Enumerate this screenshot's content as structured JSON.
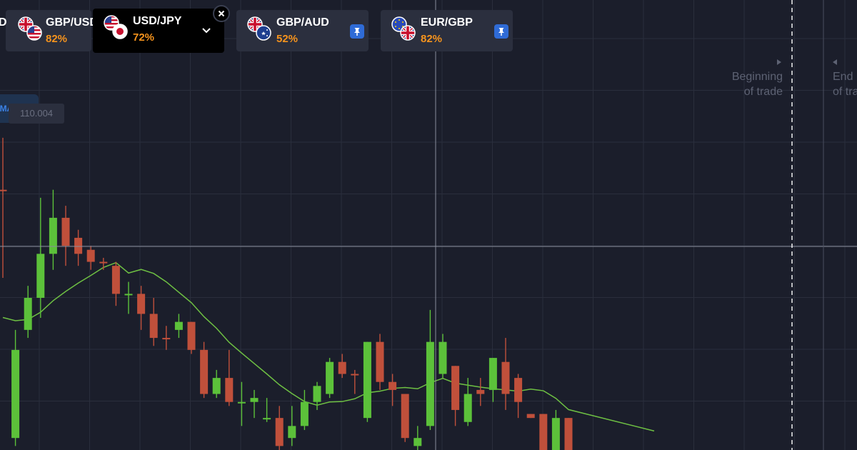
{
  "tabs": [
    {
      "pair": "GBP/USD",
      "percent": "82%",
      "flags": [
        "gb",
        "us"
      ],
      "active": false,
      "pinned": false
    },
    {
      "pair": "USD/JPY",
      "percent": "72%",
      "flags": [
        "us",
        "jp"
      ],
      "active": true,
      "pinned": false
    },
    {
      "pair": "GBP/AUD",
      "percent": "52%",
      "flags": [
        "gb",
        "au"
      ],
      "active": false,
      "pinned": true
    },
    {
      "pair": "EUR/GBP",
      "percent": "82%",
      "flags": [
        "eu",
        "gb"
      ],
      "active": false,
      "pinned": true
    }
  ],
  "partial_tab_letter": "D",
  "info_tag": "MATION",
  "price_tag": "110.004",
  "trade_labels": {
    "beginning": [
      "Beginning",
      "of trade"
    ],
    "end": [
      "End",
      "of tra"
    ]
  },
  "icons": {
    "pin": "pin-icon",
    "close": "close-icon",
    "dropdown": "chevron-down-icon",
    "arrow_right": "triangle-right-icon",
    "arrow_left": "triangle-left-icon"
  },
  "colors": {
    "background": "#1b1e2b",
    "grid": "#2a2e3c",
    "bullish": "#5cc13a",
    "bearish": "#c0503b",
    "moving_average": "#6ec043",
    "percent": "#f7941d",
    "pin": "#2f6bd6"
  },
  "chart_data": {
    "type": "candlestick",
    "moving_average": true,
    "grid": true,
    "candles": [
      {
        "dir": "down",
        "open": 62,
        "close": 62,
        "high": 75,
        "low": 40
      },
      {
        "dir": "up",
        "open": 0,
        "close": 22,
        "high": 27,
        "low": -2
      },
      {
        "dir": "up",
        "open": 27,
        "close": 35,
        "high": 38,
        "low": 25
      },
      {
        "dir": "up",
        "open": 35,
        "close": 46,
        "high": 60,
        "low": 30
      },
      {
        "dir": "up",
        "open": 46,
        "close": 55,
        "high": 62,
        "low": 42
      },
      {
        "dir": "down",
        "open": 55,
        "close": 48,
        "high": 58,
        "low": 43
      },
      {
        "dir": "down",
        "open": 50,
        "close": 46,
        "high": 52,
        "low": 43
      },
      {
        "dir": "down",
        "open": 47,
        "close": 44,
        "high": 48,
        "low": 42
      },
      {
        "dir": "down",
        "open": 44,
        "close": 44,
        "high": 45,
        "low": 42
      },
      {
        "dir": "down",
        "open": 43,
        "close": 36,
        "high": 44,
        "low": 33
      },
      {
        "dir": "up",
        "open": 36,
        "close": 36,
        "high": 39,
        "low": 31
      },
      {
        "dir": "down",
        "open": 36,
        "close": 31,
        "high": 38,
        "low": 27
      },
      {
        "dir": "down",
        "open": 31,
        "close": 25,
        "high": 35,
        "low": 23
      },
      {
        "dir": "down",
        "open": 25,
        "close": 25,
        "high": 28,
        "low": 22
      },
      {
        "dir": "up",
        "open": 27,
        "close": 29,
        "high": 31,
        "low": 25
      },
      {
        "dir": "down",
        "open": 29,
        "close": 22,
        "high": 29,
        "low": 21
      },
      {
        "dir": "down",
        "open": 22,
        "close": 11,
        "high": 24,
        "low": 10
      },
      {
        "dir": "up",
        "open": 11,
        "close": 15,
        "high": 17,
        "low": 10
      },
      {
        "dir": "down",
        "open": 15,
        "close": 9,
        "high": 22,
        "low": 8
      },
      {
        "dir": "up",
        "open": 9,
        "close": 9,
        "high": 14,
        "low": 3
      },
      {
        "dir": "up",
        "open": 9,
        "close": 10,
        "high": 12,
        "low": 5
      },
      {
        "dir": "up",
        "open": 5,
        "close": 5,
        "high": 10,
        "low": 4
      },
      {
        "dir": "down",
        "open": 5,
        "close": -2,
        "high": 8,
        "low": -3
      },
      {
        "dir": "up",
        "open": 0,
        "close": 3,
        "high": 8,
        "low": -2
      },
      {
        "dir": "up",
        "open": 3,
        "close": 9,
        "high": 12,
        "low": 2
      },
      {
        "dir": "up",
        "open": 9,
        "close": 13,
        "high": 14,
        "low": 7
      },
      {
        "dir": "up",
        "open": 11,
        "close": 19,
        "high": 20,
        "low": 10
      },
      {
        "dir": "down",
        "open": 19,
        "close": 16,
        "high": 21,
        "low": 15
      },
      {
        "dir": "down",
        "open": 16,
        "close": 16,
        "high": 17,
        "low": 11
      },
      {
        "dir": "up",
        "open": 5,
        "close": 24,
        "high": 24,
        "low": 4
      },
      {
        "dir": "down",
        "open": 24,
        "close": 14,
        "high": 26,
        "low": 12
      },
      {
        "dir": "down",
        "open": 14,
        "close": 12,
        "high": 16,
        "low": 8
      },
      {
        "dir": "down",
        "open": 11,
        "close": 0,
        "high": 11,
        "low": -1
      },
      {
        "dir": "up",
        "open": -2,
        "close": 0,
        "high": 3,
        "low": -3
      },
      {
        "dir": "up",
        "open": 3,
        "close": 24,
        "high": 32,
        "low": 2
      },
      {
        "dir": "up",
        "open": 16,
        "close": 24,
        "high": 26,
        "low": 15
      },
      {
        "dir": "down",
        "open": 18,
        "close": 7,
        "high": 18,
        "low": 3
      },
      {
        "dir": "up",
        "open": 4,
        "close": 11,
        "high": 15,
        "low": 3
      },
      {
        "dir": "down",
        "open": 12,
        "close": 11,
        "high": 15,
        "low": 8
      },
      {
        "dir": "up",
        "open": 12,
        "close": 20,
        "high": 20,
        "low": 9
      },
      {
        "dir": "down",
        "open": 19,
        "close": 11,
        "high": 25,
        "low": 7
      },
      {
        "dir": "down",
        "open": 15,
        "close": 9,
        "high": 16,
        "low": 5
      },
      {
        "dir": "down",
        "open": 6,
        "close": 5,
        "high": 6,
        "low": 5
      },
      {
        "dir": "down",
        "open": 6,
        "close": -4,
        "high": 6,
        "low": -5
      },
      {
        "dir": "up",
        "open": -4,
        "close": 5,
        "high": 7,
        "low": -5
      },
      {
        "dir": "down",
        "open": 5,
        "close": -4,
        "high": 5,
        "low": -5
      }
    ]
  }
}
